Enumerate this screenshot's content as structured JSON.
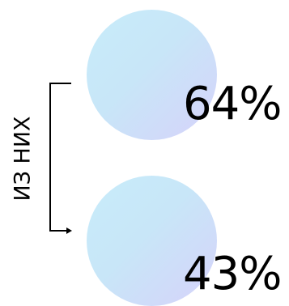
{
  "items": [
    {
      "value": "64%"
    },
    {
      "value": "43%"
    }
  ],
  "connector_label": "ИЗ НИХ",
  "colors": {
    "circle_gradient_start": "#c8ecfa",
    "circle_gradient_end": "#d6d2fa",
    "text": "#000000",
    "line": "#000000"
  }
}
